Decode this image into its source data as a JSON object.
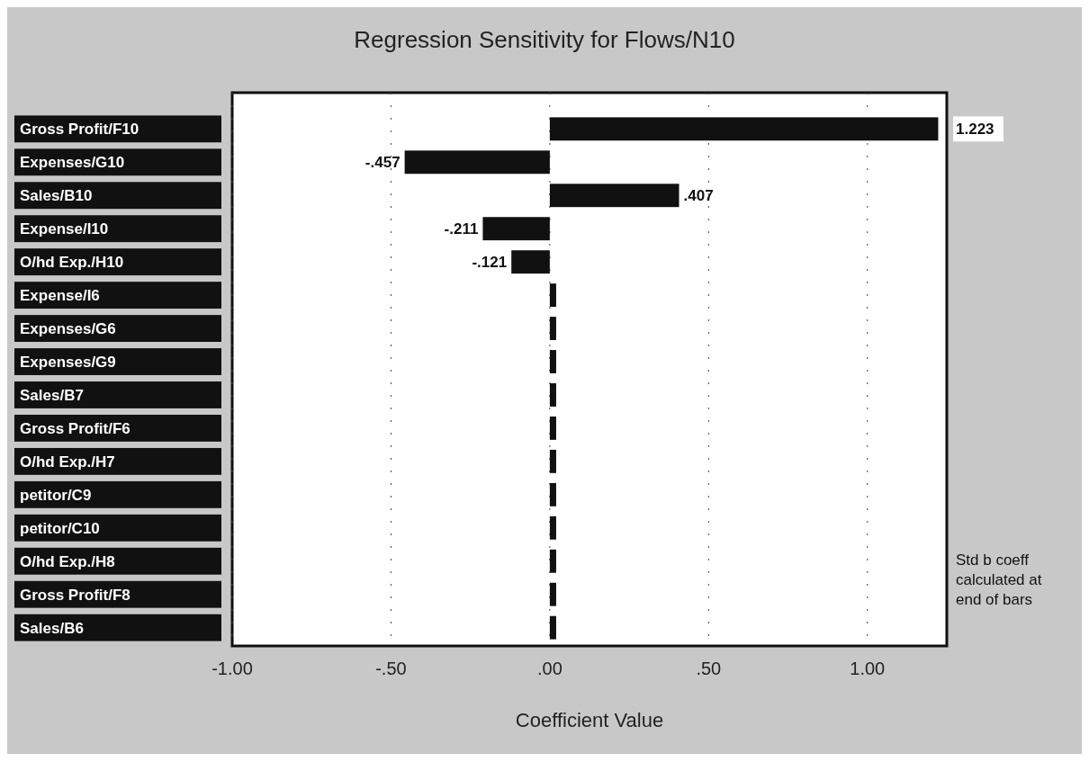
{
  "chart_data": {
    "type": "bar",
    "orientation": "horizontal",
    "title": "Regression Sensitivity for Flows/N10",
    "xlabel": "Coefficient Value",
    "categories": [
      "Gross Profit/F10",
      "Expenses/G10",
      "Sales/B10",
      "Expense/I10",
      "O/hd Exp./H10",
      "Expense/I6",
      "Expenses/G6",
      "Expenses/G9",
      "Sales/B7",
      "Gross Profit/F6",
      "O/hd Exp./H7",
      "petitor/C9",
      "petitor/C10",
      "O/hd Exp./H8",
      "Gross Profit/F8",
      "Sales/B6"
    ],
    "values": [
      1.223,
      -0.457,
      0.407,
      -0.211,
      -0.121,
      0.02,
      0.02,
      0.02,
      0.02,
      0.02,
      0.02,
      0.02,
      0.02,
      0.02,
      0.02,
      0.02
    ],
    "value_labels": [
      "1.223",
      "-.457",
      ".407",
      "-.211",
      "-.121",
      null,
      null,
      null,
      null,
      null,
      null,
      null,
      null,
      null,
      null,
      null
    ],
    "color": "#111111",
    "xlim": [
      -1,
      1.25
    ],
    "xticks": [
      {
        "value": -1,
        "label": "-1.00"
      },
      {
        "value": -0.5,
        "label": "-.50"
      },
      {
        "value": 0,
        "label": ".00"
      },
      {
        "value": 0.5,
        "label": ".50"
      },
      {
        "value": 1,
        "label": "1.00"
      }
    ],
    "grid": "x",
    "annotations": [
      "Std b coeff calculated at end of bars"
    ]
  }
}
